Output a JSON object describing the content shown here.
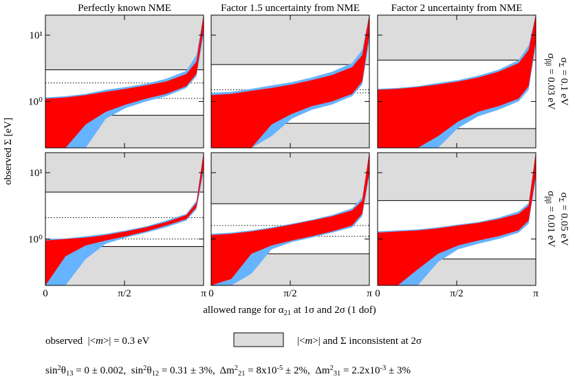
{
  "figure": {
    "y_label": [
      {
        "t": "observed Σ [eV]"
      }
    ],
    "x_label": [
      {
        "t": "allowed range for α"
      },
      {
        "sub": "21"
      },
      {
        "t": " at 1σ and 2σ (1 dof)"
      }
    ],
    "xlim": [
      0,
      3.1416
    ],
    "xticks": [
      0,
      {
        "value": 1.5708,
        "label": "π/2"
      },
      {
        "value": 3.1416,
        "label": "π"
      }
    ],
    "ylim": [
      0.2,
      20
    ],
    "yticks": [
      {
        "value": 1,
        "label": "10⁰"
      },
      {
        "value": 10,
        "label": "10¹"
      }
    ],
    "row_labels": [
      [
        [
          {
            "t": "σ"
          },
          {
            "sub": "Σ"
          },
          {
            "t": " = 0.1 eV"
          }
        ],
        [
          {
            "t": "σ"
          },
          {
            "sub": "ββ"
          },
          {
            "t": " = 0.03 eV"
          }
        ]
      ],
      [
        [
          {
            "t": "σ"
          },
          {
            "sub": "Σ"
          },
          {
            "t": " = 0.05 eV"
          }
        ],
        [
          {
            "t": "σ"
          },
          {
            "sub": "ββ"
          },
          {
            "t": " = 0.01 eV"
          }
        ]
      ]
    ],
    "legend": [
      [
        {
          "t": "observed  |<"
        },
        {
          "i": "m"
        },
        {
          "t": ">| = 0.3 eV"
        }
      ],
      [
        {
          "t": "|<"
        },
        {
          "i": "m"
        },
        {
          "t": ">| and Σ inconsistent at 2σ"
        }
      ]
    ],
    "inconsistent_color": "#dcdcdc",
    "footer": [
      {
        "t": "sin"
      },
      {
        "sup": "2"
      },
      {
        "t": "θ"
      },
      {
        "sub": "13"
      },
      {
        "t": " = 0 ± 0.002,  sin"
      },
      {
        "sup": "2"
      },
      {
        "t": "θ"
      },
      {
        "sub": "12"
      },
      {
        "t": " = 0.31 ± 3%,  Δm"
      },
      {
        "sup": "2"
      },
      {
        "sub": "21"
      },
      {
        "t": " = 8x10"
      },
      {
        "sup": "-5"
      },
      {
        "t": " ± 2%,  Δm"
      },
      {
        "sup": "2"
      },
      {
        "sub": "31"
      },
      {
        "t": " = 2.2x10"
      },
      {
        "sup": "-3"
      },
      {
        "t": " ± 3%"
      }
    ]
  },
  "chart_data": [
    {
      "type": "band",
      "title": "Perfectly known NME",
      "x": [
        0,
        0.4,
        0.8,
        1.2,
        1.6,
        2.0,
        2.4,
        2.8,
        3.0,
        3.14
      ],
      "bands": [
        {
          "color": "#66b3ff",
          "lower": [
            0.2,
            0.2,
            0.2,
            0.55,
            0.8,
            1.0,
            1.2,
            1.6,
            2.4,
            10
          ],
          "upper": [
            1.15,
            1.2,
            1.3,
            1.5,
            1.65,
            1.85,
            2.2,
            2.9,
            5,
            20
          ]
        },
        {
          "color": "#ff0000",
          "lower": [
            0.2,
            0.2,
            0.45,
            0.7,
            0.9,
            1.1,
            1.3,
            1.7,
            2.6,
            12
          ],
          "upper": [
            1.1,
            1.15,
            1.25,
            1.4,
            1.55,
            1.75,
            2.0,
            2.6,
            4,
            20
          ]
        }
      ],
      "levels": {
        "upper": 3.0,
        "lower": 0.62,
        "lower_from": 0.85,
        "dotted": [
          1.9,
          1.11
        ]
      }
    },
    {
      "type": "band",
      "title": "Factor 1.5 uncertainty from NME",
      "x": [
        0,
        0.4,
        0.8,
        1.2,
        1.6,
        2.0,
        2.4,
        2.8,
        3.0,
        3.14
      ],
      "bands": [
        {
          "color": "#66b3ff",
          "lower": [
            0.2,
            0.2,
            0.2,
            0.3,
            0.55,
            0.75,
            0.9,
            1.2,
            1.8,
            8
          ],
          "upper": [
            1.35,
            1.4,
            1.55,
            1.75,
            1.95,
            2.3,
            2.8,
            3.8,
            6,
            20
          ]
        },
        {
          "color": "#ff0000",
          "lower": [
            0.2,
            0.2,
            0.2,
            0.45,
            0.65,
            0.85,
            1.0,
            1.3,
            2,
            10
          ],
          "upper": [
            1.25,
            1.3,
            1.45,
            1.6,
            1.8,
            2.1,
            2.5,
            3.3,
            5,
            20
          ]
        }
      ],
      "levels": {
        "upper": 3.6,
        "lower": 0.47,
        "lower_from": 0.79,
        "dotted": [
          1.5,
          1.35
        ]
      }
    },
    {
      "type": "band",
      "title": "Factor 2 uncertainty from NME",
      "x": [
        0,
        0.4,
        0.8,
        1.2,
        1.6,
        2.0,
        2.4,
        2.8,
        3.0,
        3.14
      ],
      "bands": [
        {
          "color": "#66b3ff",
          "lower": [
            0.2,
            0.2,
            0.2,
            0.2,
            0.4,
            0.6,
            0.75,
            1.0,
            1.5,
            7
          ],
          "upper": [
            1.55,
            1.6,
            1.7,
            1.9,
            2.1,
            2.45,
            3.0,
            4.2,
            7,
            20
          ]
        },
        {
          "color": "#ff0000",
          "lower": [
            0.2,
            0.2,
            0.2,
            0.3,
            0.5,
            0.7,
            0.85,
            1.1,
            1.7,
            8
          ],
          "upper": [
            1.5,
            1.55,
            1.65,
            1.8,
            2.0,
            2.3,
            2.8,
            3.8,
            6,
            20
          ]
        }
      ],
      "levels": {
        "upper": 4.2,
        "lower": 0.39,
        "lower_from": 0.77
      }
    },
    {
      "type": "band",
      "x": [
        0,
        0.4,
        0.8,
        1.2,
        1.6,
        2.0,
        2.4,
        2.8,
        3.0,
        3.14
      ],
      "bands": [
        {
          "color": "#66b3ff",
          "lower": [
            0.2,
            0.2,
            0.5,
            0.85,
            1.05,
            1.25,
            1.5,
            1.9,
            2.8,
            10
          ],
          "upper": [
            1.0,
            1.02,
            1.1,
            1.2,
            1.35,
            1.55,
            1.9,
            2.4,
            3.8,
            20
          ]
        },
        {
          "color": "#ff0000",
          "lower": [
            0.2,
            0.55,
            0.8,
            0.95,
            1.1,
            1.3,
            1.6,
            2.0,
            3,
            12
          ],
          "upper": [
            0.95,
            1.0,
            1.05,
            1.15,
            1.3,
            1.5,
            1.8,
            2.3,
            3.5,
            20
          ]
        }
      ],
      "levels": {
        "upper": 5.1,
        "lower": 0.77,
        "lower_from": 0.44,
        "dotted": [
          2.1,
          1.0
        ]
      }
    },
    {
      "type": "band",
      "x": [
        0,
        0.4,
        0.8,
        1.2,
        1.6,
        2.0,
        2.4,
        2.8,
        3.0,
        3.14
      ],
      "bands": [
        {
          "color": "#66b3ff",
          "lower": [
            0.2,
            0.2,
            0.3,
            0.7,
            0.9,
            1.05,
            1.25,
            1.5,
            2.2,
            9
          ],
          "upper": [
            1.2,
            1.25,
            1.35,
            1.5,
            1.7,
            1.95,
            2.3,
            2.9,
            4.2,
            20
          ]
        },
        {
          "color": "#ff0000",
          "lower": [
            0.2,
            0.25,
            0.6,
            0.8,
            0.95,
            1.1,
            1.3,
            1.6,
            2.4,
            10
          ],
          "upper": [
            1.15,
            1.2,
            1.3,
            1.45,
            1.65,
            1.9,
            2.2,
            2.7,
            3.8,
            20
          ]
        }
      ],
      "levels": {
        "upper": 3.4,
        "lower": 0.6,
        "lower_from": 0.66,
        "dotted": [
          1.6,
          1.1
        ]
      }
    },
    {
      "type": "band",
      "x": [
        0,
        0.4,
        0.8,
        1.2,
        1.6,
        2.0,
        2.4,
        2.8,
        3.0,
        3.14
      ],
      "bands": [
        {
          "color": "#66b3ff",
          "lower": [
            0.2,
            0.2,
            0.2,
            0.45,
            0.7,
            0.85,
            1.0,
            1.25,
            1.7,
            8
          ],
          "upper": [
            1.3,
            1.35,
            1.4,
            1.5,
            1.65,
            1.8,
            2.1,
            2.6,
            3.5,
            20
          ]
        },
        {
          "color": "#ff0000",
          "lower": [
            0.2,
            0.2,
            0.35,
            0.6,
            0.8,
            0.95,
            1.1,
            1.35,
            1.9,
            9
          ],
          "upper": [
            1.25,
            1.3,
            1.35,
            1.45,
            1.6,
            1.75,
            2.0,
            2.4,
            3.2,
            20
          ]
        }
      ],
      "levels": {
        "upper": 3.8,
        "lower": 0.5,
        "lower_from": 0.77
      }
    }
  ]
}
